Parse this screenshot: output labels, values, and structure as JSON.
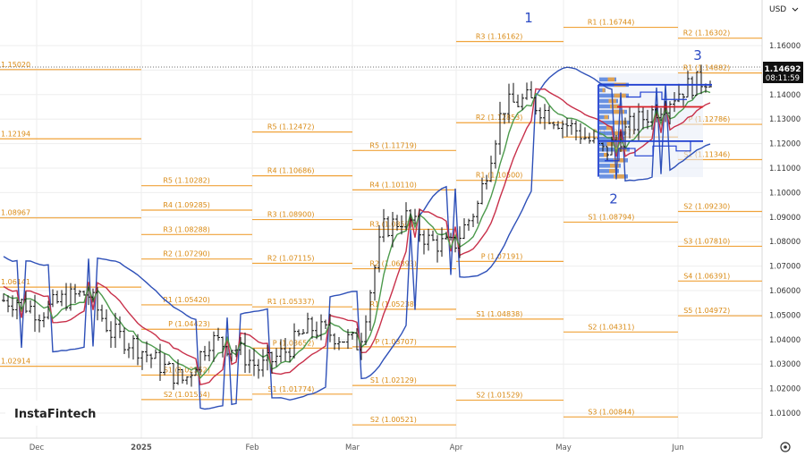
{
  "header": {
    "currency": "USD"
  },
  "price": {
    "current": "1.14692",
    "countdown": "08:11:59"
  },
  "brand": {
    "name": "InstaFintech"
  },
  "chart_data": {
    "type": "candlestick",
    "x_axis": {
      "ticks": [
        "Dec",
        "2025",
        "Feb",
        "Mar",
        "Apr",
        "May",
        "Jun"
      ]
    },
    "y_axis": {
      "ticks": [
        "1.16000",
        "1.15000",
        "1.14000",
        "1.13000",
        "1.12000",
        "1.11000",
        "1.10000",
        "1.09000",
        "1.08000",
        "1.07000",
        "1.06000",
        "1.05000",
        "1.04000",
        "1.03000",
        "1.02000",
        "1.01000"
      ],
      "range": [
        0.9998,
        1.1786
      ]
    },
    "pivot_levels": [
      {
        "month": "Dec",
        "label": "1.15020",
        "value": 1.1502
      },
      {
        "month": "Dec",
        "label": "1.12194",
        "value": 1.12194
      },
      {
        "month": "Dec",
        "label": "1.08967",
        "value": 1.08967
      },
      {
        "month": "Dec",
        "label": "1.06141",
        "value": 1.06141
      },
      {
        "month": "Dec",
        "label": "1.02914",
        "value": 1.02914
      },
      {
        "month": "Jan",
        "label": "R5 (1.10282)",
        "value": 1.10282
      },
      {
        "month": "Jan",
        "label": "R4 (1.09285)",
        "value": 1.09285
      },
      {
        "month": "Jan",
        "label": "R3 (1.08288)",
        "value": 1.08288
      },
      {
        "month": "Jan",
        "label": "R2 (1.07290)",
        "value": 1.0729
      },
      {
        "month": "Jan",
        "label": "R1 (1.05420)",
        "value": 1.0542
      },
      {
        "month": "Jan",
        "label": "P (1.04423)",
        "value": 1.04423
      },
      {
        "month": "Jan",
        "label": "S1 (1.02552)",
        "value": 1.02552
      },
      {
        "month": "Jan",
        "label": "S2 (1.01554)",
        "value": 1.01554
      },
      {
        "month": "Feb",
        "label": "R5 (1.12472)",
        "value": 1.12472
      },
      {
        "month": "Feb",
        "label": "R4 (1.10686)",
        "value": 1.10686
      },
      {
        "month": "Feb",
        "label": "R3 (1.08900)",
        "value": 1.089
      },
      {
        "month": "Feb",
        "label": "R2 (1.07115)",
        "value": 1.07115
      },
      {
        "month": "Feb",
        "label": "R1 (1.05337)",
        "value": 1.05337
      },
      {
        "month": "Feb",
        "label": "P (1.03652)",
        "value": 1.03652
      },
      {
        "month": "Feb",
        "label": "S1 (1.01774)",
        "value": 1.01774
      },
      {
        "month": "Mar",
        "label": "R5 (1.11719)",
        "value": 1.11719
      },
      {
        "month": "Mar",
        "label": "R4 (1.10110)",
        "value": 1.1011
      },
      {
        "month": "Mar",
        "label": "R3 (1.08501)",
        "value": 1.08501
      },
      {
        "month": "Mar",
        "label": "R2 (1.06893)",
        "value": 1.06893
      },
      {
        "month": "Mar",
        "label": "R1 (1.05238)",
        "value": 1.05238
      },
      {
        "month": "Mar",
        "label": "P (1.03707)",
        "value": 1.03707
      },
      {
        "month": "Mar",
        "label": "S1 (1.02129)",
        "value": 1.02129
      },
      {
        "month": "Mar",
        "label": "S2 (1.00521)",
        "value": 1.00521
      },
      {
        "month": "Apr",
        "label": "R3 (1.16162)",
        "value": 1.16162
      },
      {
        "month": "Apr",
        "label": "R2 (1.12853)",
        "value": 1.12853
      },
      {
        "month": "Apr",
        "label": "R1 (1.10500)",
        "value": 1.105
      },
      {
        "month": "Apr",
        "label": "P (1.07191)",
        "value": 1.07191
      },
      {
        "month": "Apr",
        "label": "S1 (1.04838)",
        "value": 1.04838
      },
      {
        "month": "Apr",
        "label": "S2 (1.01529)",
        "value": 1.01529
      },
      {
        "month": "May",
        "label": "R1 (1.16744)",
        "value": 1.16744
      },
      {
        "month": "May",
        "label": "P (1.12267)",
        "value": 1.12267
      },
      {
        "month": "May",
        "label": "S1 (1.08794)",
        "value": 1.08794
      },
      {
        "month": "May",
        "label": "S2 (1.04311)",
        "value": 1.04311
      },
      {
        "month": "May",
        "label": "S3 (1.00844)",
        "value": 1.00844
      },
      {
        "month": "Jun",
        "label": "R2 (1.16302)",
        "value": 1.16302
      },
      {
        "month": "Jun",
        "label": "R1 (1.14882)",
        "value": 1.14882
      },
      {
        "month": "Jun",
        "label": "P (1.12786)",
        "value": 1.12786
      },
      {
        "month": "Jun",
        "label": "S1 (1.11346)",
        "value": 1.11346
      },
      {
        "month": "Jun",
        "label": "S2 (1.09230)",
        "value": 1.0923
      },
      {
        "month": "Jun",
        "label": "S3 (1.07810)",
        "value": 1.0781
      },
      {
        "month": "Jun",
        "label": "S4 (1.06391)",
        "value": 1.06391
      },
      {
        "month": "Jun",
        "label": "S5 (1.04972)",
        "value": 1.04972
      }
    ],
    "wave_labels": [
      "1",
      "2",
      "3"
    ],
    "close_path": [
      {
        "date": "2024-11-25",
        "close": 1.056
      },
      {
        "date": "2024-12-02",
        "close": 1.051
      },
      {
        "date": "2024-12-09",
        "close": 1.0565
      },
      {
        "date": "2024-12-16",
        "close": 1.059
      },
      {
        "date": "2024-12-23",
        "close": 1.043
      },
      {
        "date": "2024-12-30",
        "close": 1.038
      },
      {
        "date": "2025-01-06",
        "close": 1.03
      },
      {
        "date": "2025-01-13",
        "close": 1.023
      },
      {
        "date": "2025-01-20",
        "close": 1.04
      },
      {
        "date": "2025-01-27",
        "close": 1.037
      },
      {
        "date": "2025-02-03",
        "close": 1.028
      },
      {
        "date": "2025-02-10",
        "close": 1.035
      },
      {
        "date": "2025-02-17",
        "close": 1.045
      },
      {
        "date": "2025-02-24",
        "close": 1.042
      },
      {
        "date": "2025-03-03",
        "close": 1.038
      },
      {
        "date": "2025-03-10",
        "close": 1.085
      },
      {
        "date": "2025-03-17",
        "close": 1.09
      },
      {
        "date": "2025-03-24",
        "close": 1.08
      },
      {
        "date": "2025-03-31",
        "close": 1.078
      },
      {
        "date": "2025-04-07",
        "close": 1.095
      },
      {
        "date": "2025-04-14",
        "close": 1.135
      },
      {
        "date": "2025-04-21",
        "close": 1.138
      },
      {
        "date": "2025-04-28",
        "close": 1.131
      },
      {
        "date": "2025-05-05",
        "close": 1.125
      },
      {
        "date": "2025-05-12",
        "close": 1.116
      },
      {
        "date": "2025-05-19",
        "close": 1.127
      },
      {
        "date": "2025-05-26",
        "close": 1.134
      },
      {
        "date": "2025-06-02",
        "close": 1.142
      },
      {
        "date": "2025-06-09",
        "close": 1.1469
      }
    ],
    "moving_averages": [
      {
        "color": "#2e50b8"
      },
      {
        "color": "#c8304a"
      },
      {
        "color": "#4c9a4c"
      }
    ]
  }
}
